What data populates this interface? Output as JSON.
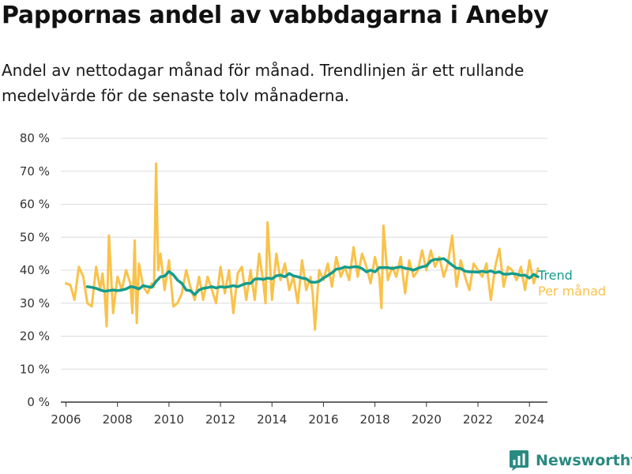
{
  "title": "Pappornas andel av vabbdagarna i Aneby",
  "subtitle": "Andel av nettodagar månad för månad. Trendlinjen är ett rullande medelvärde för de senaste tolv månaderna.",
  "brand": {
    "name": "Newsworthy",
    "icon": "bar-chart-logo-icon",
    "color": "#2a8a80"
  },
  "chart_data": {
    "type": "line",
    "title": "Pappornas andel av vabbdagarna i Aneby",
    "xlabel": "",
    "ylabel": "",
    "xlim": [
      2005.8,
      2024.7
    ],
    "ylim": [
      0,
      80
    ],
    "grid": true,
    "yticks": [
      0,
      10,
      20,
      30,
      40,
      50,
      60,
      70,
      80
    ],
    "ytick_labels": [
      "0 %",
      "10 %",
      "20 %",
      "30 %",
      "40 %",
      "50 %",
      "60 %",
      "70 %",
      "80 %"
    ],
    "xticks": [
      2006,
      2008,
      2010,
      2012,
      2014,
      2016,
      2018,
      2020,
      2022,
      2024
    ],
    "xtick_labels": [
      "2006",
      "2008",
      "2010",
      "2012",
      "2014",
      "2016",
      "2018",
      "2020",
      "2022",
      "2024"
    ],
    "legend_placement": "right end of lines",
    "series": [
      {
        "name": "Per månad",
        "color": "#f9c24a",
        "x": [
          2006.0,
          2006.17,
          2006.33,
          2006.5,
          2006.67,
          2006.83,
          2007.0,
          2007.17,
          2007.33,
          2007.42,
          2007.5,
          2007.58,
          2007.67,
          2007.83,
          2008.0,
          2008.17,
          2008.33,
          2008.5,
          2008.58,
          2008.67,
          2008.75,
          2008.83,
          2009.0,
          2009.17,
          2009.33,
          2009.42,
          2009.5,
          2009.58,
          2009.67,
          2009.83,
          2010.0,
          2010.17,
          2010.33,
          2010.5,
          2010.67,
          2010.83,
          2011.0,
          2011.17,
          2011.33,
          2011.5,
          2011.67,
          2011.83,
          2012.0,
          2012.17,
          2012.33,
          2012.5,
          2012.67,
          2012.83,
          2013.0,
          2013.17,
          2013.33,
          2013.5,
          2013.67,
          2013.75,
          2013.83,
          2014.0,
          2014.17,
          2014.33,
          2014.5,
          2014.67,
          2014.83,
          2015.0,
          2015.17,
          2015.33,
          2015.5,
          2015.58,
          2015.67,
          2015.83,
          2016.0,
          2016.17,
          2016.33,
          2016.5,
          2016.67,
          2016.83,
          2017.0,
          2017.17,
          2017.33,
          2017.5,
          2017.67,
          2017.83,
          2018.0,
          2018.17,
          2018.25,
          2018.33,
          2018.5,
          2018.67,
          2018.83,
          2019.0,
          2019.17,
          2019.33,
          2019.5,
          2019.67,
          2019.83,
          2020.0,
          2020.17,
          2020.33,
          2020.5,
          2020.67,
          2020.83,
          2021.0,
          2021.17,
          2021.33,
          2021.5,
          2021.67,
          2021.83,
          2022.0,
          2022.17,
          2022.33,
          2022.5,
          2022.67,
          2022.83,
          2023.0,
          2023.17,
          2023.33,
          2023.5,
          2023.67,
          2023.83,
          2024.0,
          2024.17,
          2024.33
        ],
        "values": [
          36,
          35.5,
          31,
          41,
          38,
          30,
          29,
          41,
          34,
          39,
          33,
          23,
          50.5,
          27,
          38,
          34,
          40,
          36,
          27,
          49,
          24,
          42,
          35,
          33,
          36,
          35,
          72.3,
          40,
          45,
          34,
          43,
          29,
          30,
          33,
          40,
          35,
          31,
          38,
          31,
          38,
          34,
          30,
          41,
          33,
          40,
          27,
          39,
          41,
          31,
          40,
          31,
          45,
          36,
          30,
          54.5,
          31,
          45,
          37,
          42,
          34,
          38,
          30,
          43,
          34,
          38,
          33,
          22,
          40,
          37,
          42,
          35,
          44,
          38,
          41,
          37,
          47,
          38,
          45,
          41,
          36,
          44,
          38,
          28.5,
          53.5,
          37,
          41,
          38,
          44,
          33,
          43,
          38,
          40,
          46,
          40,
          46,
          41,
          44,
          38,
          42,
          50.5,
          35,
          43,
          38,
          34,
          42,
          40,
          38,
          42,
          31,
          41,
          46.5,
          35,
          41,
          40,
          37,
          41,
          34,
          43,
          36,
          40.5
        ]
      },
      {
        "name": "Trend",
        "color": "#169c8c",
        "x": [
          2006.83,
          2007.0,
          2007.17,
          2007.33,
          2007.5,
          2007.67,
          2007.83,
          2008.0,
          2008.17,
          2008.33,
          2008.5,
          2008.67,
          2008.83,
          2009.0,
          2009.17,
          2009.33,
          2009.5,
          2009.67,
          2009.83,
          2010.0,
          2010.17,
          2010.33,
          2010.5,
          2010.67,
          2010.83,
          2011.0,
          2011.17,
          2011.33,
          2011.5,
          2011.67,
          2011.83,
          2012.0,
          2012.17,
          2012.33,
          2012.5,
          2012.67,
          2012.83,
          2013.0,
          2013.17,
          2013.33,
          2013.5,
          2013.67,
          2013.83,
          2014.0,
          2014.17,
          2014.33,
          2014.5,
          2014.67,
          2014.83,
          2015.0,
          2015.17,
          2015.33,
          2015.5,
          2015.67,
          2015.83,
          2016.0,
          2016.17,
          2016.33,
          2016.5,
          2016.67,
          2016.83,
          2017.0,
          2017.17,
          2017.33,
          2017.5,
          2017.67,
          2017.83,
          2018.0,
          2018.17,
          2018.33,
          2018.5,
          2018.67,
          2018.83,
          2019.0,
          2019.17,
          2019.33,
          2019.5,
          2019.67,
          2019.83,
          2020.0,
          2020.17,
          2020.33,
          2020.5,
          2020.67,
          2020.83,
          2021.0,
          2021.17,
          2021.33,
          2021.5,
          2021.67,
          2021.83,
          2022.0,
          2022.17,
          2022.33,
          2022.5,
          2022.67,
          2022.83,
          2023.0,
          2023.17,
          2023.33,
          2023.5,
          2023.67,
          2023.83,
          2024.0,
          2024.17,
          2024.33
        ],
        "values": [
          35,
          34.8,
          34.5,
          34,
          33.6,
          33.8,
          34,
          33.8,
          34,
          34.3,
          35,
          34.8,
          34.3,
          35.3,
          35,
          34.8,
          36.6,
          38,
          38.2,
          39.6,
          38.6,
          37,
          36,
          34,
          33.8,
          32.6,
          34,
          34.5,
          34.7,
          35,
          34.6,
          35,
          34.8,
          35,
          35.3,
          35,
          35.5,
          36,
          36,
          37.3,
          37.4,
          37.2,
          37.6,
          37.4,
          38.3,
          38.5,
          38,
          39,
          38.3,
          38,
          37.6,
          37.4,
          36.4,
          36.3,
          36.6,
          37.6,
          38.4,
          39.2,
          40.3,
          40.5,
          41,
          40.8,
          41,
          41,
          40.5,
          39.5,
          40,
          39.5,
          40.8,
          40.8,
          40.8,
          40.5,
          40.8,
          41,
          40.6,
          40.4,
          40,
          40.6,
          41,
          41.3,
          42.8,
          43.3,
          43.3,
          43.5,
          42.6,
          41.5,
          40.6,
          40.5,
          39.7,
          39.5,
          39.5,
          39.4,
          39.7,
          39.4,
          39.8,
          39.2,
          39.5,
          38.8,
          38.8,
          39,
          38.8,
          38.4,
          38.5,
          37.6,
          38.7,
          38
        ]
      }
    ]
  }
}
